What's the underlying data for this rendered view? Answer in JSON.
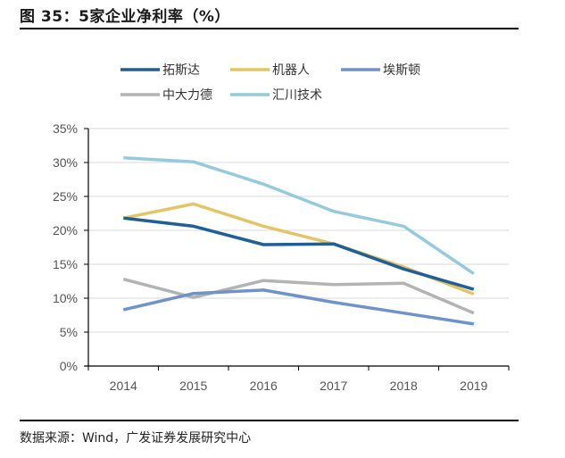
{
  "figure": {
    "title": "图 35：5家企业净利率（%）",
    "source": "数据来源：Wind，广发证券发展研究中心"
  },
  "chart_data": {
    "type": "line",
    "title": "图 35：5家企业净利率（%）",
    "xlabel": "",
    "ylabel": "",
    "categories": [
      "2014",
      "2015",
      "2016",
      "2017",
      "2018",
      "2019"
    ],
    "ylim": [
      0,
      35
    ],
    "yticks": [
      0,
      5,
      10,
      15,
      20,
      25,
      30,
      35
    ],
    "ytick_labels": [
      "0%",
      "5%",
      "10%",
      "15%",
      "20%",
      "25%",
      "30%",
      "35%"
    ],
    "grid": true,
    "legend_position": "top",
    "series": [
      {
        "name": "拓斯达",
        "color": "#1f5f96",
        "values": [
          21.8,
          20.6,
          17.9,
          18.0,
          14.3,
          11.3
        ]
      },
      {
        "name": "机器人",
        "color": "#e3c567",
        "values": [
          21.8,
          23.9,
          20.6,
          18.0,
          14.6,
          10.6
        ]
      },
      {
        "name": "埃斯顿",
        "color": "#6f93c8",
        "values": [
          8.3,
          10.7,
          11.2,
          9.4,
          7.8,
          6.2
        ]
      },
      {
        "name": "中大力德",
        "color": "#b3b3b3",
        "values": [
          12.8,
          10.1,
          12.6,
          12.0,
          12.2,
          7.8
        ]
      },
      {
        "name": "汇川技术",
        "color": "#94cadb",
        "values": [
          30.7,
          30.1,
          26.8,
          22.8,
          20.6,
          13.6
        ]
      }
    ]
  }
}
